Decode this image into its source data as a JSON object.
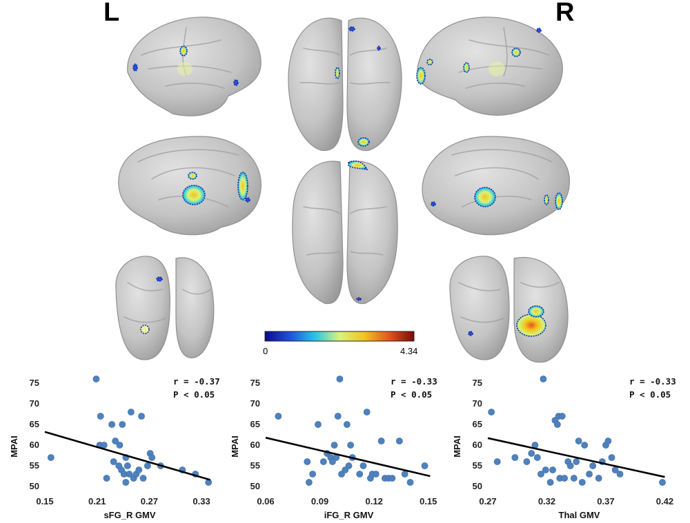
{
  "figure": {
    "hemisphere_left": "L",
    "hemisphere_right": "R",
    "colorbar": {
      "min_label": "0",
      "max_label": "4.34",
      "min": 0,
      "max": 4.34,
      "colors": [
        "#0a0a8c",
        "#1f4fe0",
        "#23c6e8",
        "#d9f27a",
        "#f2c519",
        "#e8521c",
        "#7a0a0a"
      ]
    },
    "brain_color": "#c8c8c8"
  },
  "chart_data": [
    {
      "type": "scatter",
      "xlabel": "sFG_R GMV",
      "ylabel": "MPAI",
      "x_ticks": [
        "0.15",
        "0.21",
        "0.27",
        "0.33"
      ],
      "y_ticks": [
        "50",
        "55",
        "60",
        "65",
        "70",
        "75"
      ],
      "xlim": [
        0.15,
        0.345
      ],
      "ylim": [
        50,
        76
      ],
      "r_label": "r  = -0.37",
      "p_label": "P < 0.05",
      "trend": [
        [
          0.15,
          63.2
        ],
        [
          0.34,
          51.6
        ]
      ],
      "point_color": "#4f81bd",
      "points": [
        [
          0.157,
          57
        ],
        [
          0.209,
          76
        ],
        [
          0.214,
          67
        ],
        [
          0.213,
          60
        ],
        [
          0.218,
          60
        ],
        [
          0.221,
          52
        ],
        [
          0.227,
          65
        ],
        [
          0.231,
          61
        ],
        [
          0.229,
          56
        ],
        [
          0.235,
          55
        ],
        [
          0.238,
          54
        ],
        [
          0.236,
          60
        ],
        [
          0.243,
          57
        ],
        [
          0.245,
          55
        ],
        [
          0.241,
          53
        ],
        [
          0.239,
          65
        ],
        [
          0.243,
          51
        ],
        [
          0.249,
          68
        ],
        [
          0.247,
          53
        ],
        [
          0.252,
          52
        ],
        [
          0.255,
          53
        ],
        [
          0.258,
          54
        ],
        [
          0.261,
          67
        ],
        [
          0.263,
          52
        ],
        [
          0.268,
          55
        ],
        [
          0.271,
          58
        ],
        [
          0.273,
          57
        ],
        [
          0.283,
          55
        ],
        [
          0.308,
          54
        ],
        [
          0.323,
          53
        ],
        [
          0.338,
          51
        ]
      ]
    },
    {
      "type": "scatter",
      "xlabel": "iFG_R GMV",
      "ylabel": "MPAI",
      "x_ticks": [
        "0.06",
        "0.09",
        "0.12",
        "0.15"
      ],
      "y_ticks": [
        "50",
        "55",
        "60",
        "65",
        "70",
        "75"
      ],
      "xlim": [
        0.06,
        0.152
      ],
      "ylim": [
        50,
        76
      ],
      "r_label": "r  = -0.33",
      "p_label": "P < 0.05",
      "trend": [
        [
          0.06,
          61.8
        ],
        [
          0.151,
          52.5
        ]
      ],
      "point_color": "#4f81bd",
      "points": [
        [
          0.067,
          67
        ],
        [
          0.083,
          56
        ],
        [
          0.084,
          51
        ],
        [
          0.086,
          53
        ],
        [
          0.089,
          65
        ],
        [
          0.092,
          56
        ],
        [
          0.094,
          58
        ],
        [
          0.096,
          57
        ],
        [
          0.097,
          56
        ],
        [
          0.098,
          60
        ],
        [
          0.099,
          57
        ],
        [
          0.1,
          67
        ],
        [
          0.101,
          76
        ],
        [
          0.102,
          53
        ],
        [
          0.104,
          54
        ],
        [
          0.105,
          65
        ],
        [
          0.106,
          55
        ],
        [
          0.107,
          60
        ],
        [
          0.108,
          57
        ],
        [
          0.112,
          53
        ],
        [
          0.114,
          55
        ],
        [
          0.116,
          68
        ],
        [
          0.118,
          52
        ],
        [
          0.119,
          53
        ],
        [
          0.121,
          53
        ],
        [
          0.124,
          61
        ],
        [
          0.126,
          52
        ],
        [
          0.128,
          52
        ],
        [
          0.13,
          52
        ],
        [
          0.134,
          61
        ],
        [
          0.137,
          53
        ],
        [
          0.14,
          51
        ],
        [
          0.148,
          55
        ]
      ]
    },
    {
      "type": "scatter",
      "xlabel": "Thal GMV",
      "ylabel": "MPAI",
      "x_ticks": [
        "0.27",
        "0.32",
        "0.37",
        "0.42"
      ],
      "y_ticks": [
        "50",
        "55",
        "60",
        "65",
        "70",
        "75"
      ],
      "xlim": [
        0.27,
        0.425
      ],
      "ylim": [
        50,
        76
      ],
      "r_label": "r  = -0.33",
      "p_label": "P < 0.05",
      "trend": [
        [
          0.27,
          61.7
        ],
        [
          0.42,
          52.3
        ]
      ],
      "point_color": "#4f81bd",
      "points": [
        [
          0.273,
          68
        ],
        [
          0.278,
          56
        ],
        [
          0.293,
          57
        ],
        [
          0.303,
          56
        ],
        [
          0.307,
          58
        ],
        [
          0.31,
          60
        ],
        [
          0.312,
          57
        ],
        [
          0.315,
          53
        ],
        [
          0.317,
          76
        ],
        [
          0.319,
          54
        ],
        [
          0.323,
          51
        ],
        [
          0.325,
          54
        ],
        [
          0.327,
          66
        ],
        [
          0.329,
          65
        ],
        [
          0.33,
          67
        ],
        [
          0.331,
          52
        ],
        [
          0.333,
          67
        ],
        [
          0.335,
          52
        ],
        [
          0.338,
          56
        ],
        [
          0.34,
          55
        ],
        [
          0.343,
          52
        ],
        [
          0.345,
          56
        ],
        [
          0.347,
          61
        ],
        [
          0.35,
          51
        ],
        [
          0.352,
          60
        ],
        [
          0.356,
          53
        ],
        [
          0.359,
          55
        ],
        [
          0.364,
          52
        ],
        [
          0.367,
          56
        ],
        [
          0.37,
          60
        ],
        [
          0.372,
          61
        ],
        [
          0.375,
          57
        ],
        [
          0.378,
          54
        ],
        [
          0.382,
          53
        ],
        [
          0.418,
          51
        ]
      ]
    }
  ]
}
